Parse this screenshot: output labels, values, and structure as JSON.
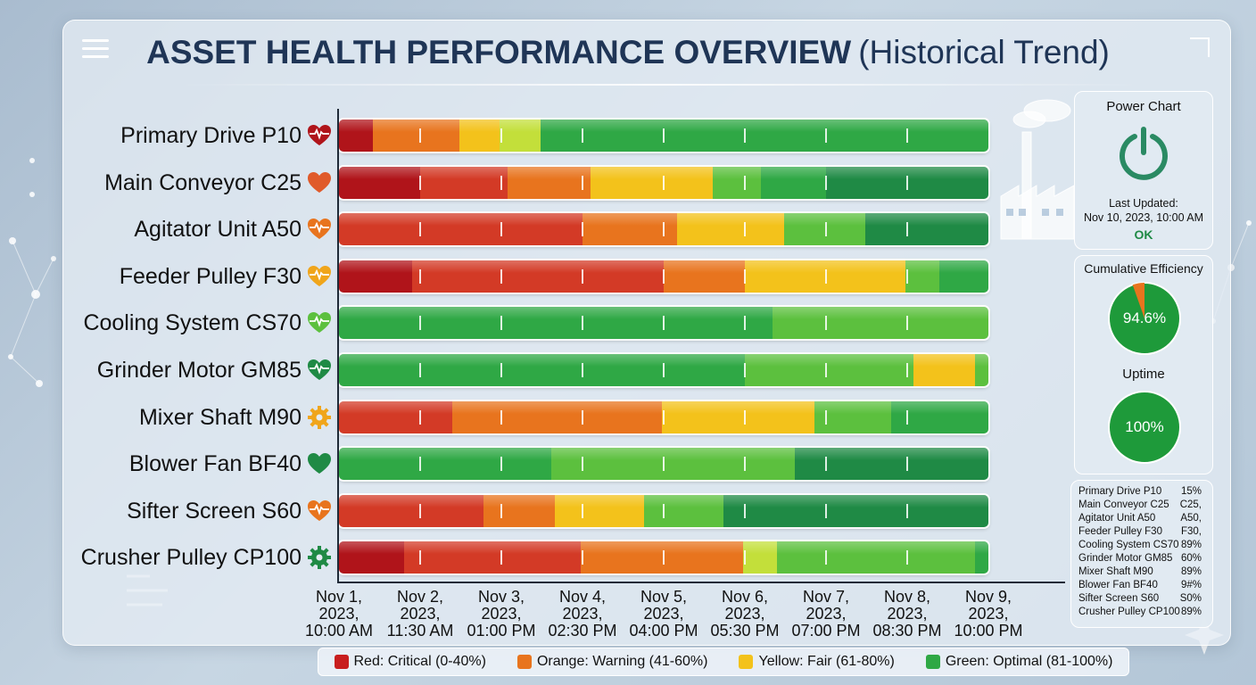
{
  "title": {
    "main": "ASSET HEALTH PERFORMANCE OVERVIEW",
    "sub": "(Historical Trend)"
  },
  "colors": {
    "critical_dark": "#b0141a",
    "critical": "#d33a26",
    "warning": "#e8741e",
    "fair": "#f3c21b",
    "fair_light": "#c3df3a",
    "optimal_light": "#5cc03e",
    "optimal": "#2fa845",
    "optimal_dark": "#1f8a45"
  },
  "chart_data": {
    "type": "bar",
    "subtype": "stacked-horizontal-timeline",
    "title": "ASSET HEALTH PERFORMANCE OVERVIEW (Historical Trend)",
    "x_ticks": [
      [
        "Nov 1,",
        "2023,",
        "10:00 AM"
      ],
      [
        "Nov 2,",
        "2023,",
        "11:30 AM"
      ],
      [
        "Nov 3,",
        "2023,",
        "01:00 PM"
      ],
      [
        "Nov 4,",
        "2023,",
        "02:30 PM"
      ],
      [
        "Nov 5,",
        "2023,",
        "04:00 PM"
      ],
      [
        "Nov 6,",
        "2023,",
        "05:30 PM"
      ],
      [
        "Nov 7,",
        "2023,",
        "07:00 PM"
      ],
      [
        "Nov 8,",
        "2023,",
        "08:30 PM"
      ],
      [
        "Nov 9,",
        "2023,",
        "10:00 PM"
      ]
    ],
    "x_range_ticks": [
      0,
      8
    ],
    "grid": false,
    "legend_position": "bottom",
    "legend": [
      {
        "label": "Red: Critical (0-40%)",
        "color": "#c81e1e"
      },
      {
        "label": "Orange: Warning (41-60%)",
        "color": "#e8741e"
      },
      {
        "label": "Yellow: Fair (61-80%)",
        "color": "#f3c21b"
      },
      {
        "label": "Green: Optimal (81-100%)",
        "color": "#2fa845"
      }
    ],
    "rows": [
      {
        "name": "Primary Drive P10",
        "icon": "heartbeat-icon",
        "icon_color": "#b0141a",
        "segments": [
          {
            "end": 0.42,
            "status": "critical_dark"
          },
          {
            "end": 1.48,
            "status": "warning"
          },
          {
            "end": 1.98,
            "status": "fair"
          },
          {
            "end": 2.48,
            "status": "fair_light"
          },
          {
            "end": 8.08,
            "status": "optimal"
          }
        ]
      },
      {
        "name": "Main Conveyor C25",
        "icon": "heart-icon",
        "icon_color": "#e05a2a",
        "segments": [
          {
            "end": 1.0,
            "status": "critical_dark"
          },
          {
            "end": 2.08,
            "status": "critical"
          },
          {
            "end": 3.1,
            "status": "warning"
          },
          {
            "end": 4.6,
            "status": "fair"
          },
          {
            "end": 5.2,
            "status": "optimal_light"
          },
          {
            "end": 6.0,
            "status": "optimal"
          },
          {
            "end": 8.08,
            "status": "optimal_dark"
          }
        ]
      },
      {
        "name": "Agitator Unit A50",
        "icon": "heartbeat-icon",
        "icon_color": "#e8741e",
        "segments": [
          {
            "end": 3.0,
            "status": "critical"
          },
          {
            "end": 4.16,
            "status": "warning"
          },
          {
            "end": 5.48,
            "status": "fair"
          },
          {
            "end": 6.48,
            "status": "optimal_light"
          },
          {
            "end": 8.08,
            "status": "optimal_dark"
          }
        ]
      },
      {
        "name": "Feeder Pulley F30",
        "icon": "heartbeat-icon",
        "icon_color": "#f0a51b",
        "segments": [
          {
            "end": 0.9,
            "status": "critical_dark"
          },
          {
            "end": 4.0,
            "status": "critical"
          },
          {
            "end": 5.0,
            "status": "warning"
          },
          {
            "end": 6.98,
            "status": "fair"
          },
          {
            "end": 7.4,
            "status": "optimal_light"
          },
          {
            "end": 8.08,
            "status": "optimal"
          }
        ]
      },
      {
        "name": "Cooling System CS70",
        "icon": "heartbeat-icon",
        "icon_color": "#5cc03e",
        "segments": [
          {
            "end": 5.34,
            "status": "optimal"
          },
          {
            "end": 8.08,
            "status": "optimal_light"
          }
        ]
      },
      {
        "name": "Grinder Motor GM85",
        "icon": "heartbeat-icon",
        "icon_color": "#1f8a45",
        "segments": [
          {
            "end": 5.0,
            "status": "optimal"
          },
          {
            "end": 7.08,
            "status": "optimal_light"
          },
          {
            "end": 7.84,
            "status": "fair"
          },
          {
            "end": 8.08,
            "status": "optimal_light"
          }
        ]
      },
      {
        "name": "Mixer Shaft M90",
        "icon": "gear-icon",
        "icon_color": "#f0a51b",
        "segments": [
          {
            "end": 1.4,
            "status": "critical"
          },
          {
            "end": 3.98,
            "status": "warning"
          },
          {
            "end": 5.86,
            "status": "fair"
          },
          {
            "end": 6.8,
            "status": "optimal_light"
          },
          {
            "end": 8.08,
            "status": "optimal"
          }
        ]
      },
      {
        "name": "Blower Fan BF40",
        "icon": "heart-icon",
        "icon_color": "#1f8a45",
        "segments": [
          {
            "end": 2.62,
            "status": "optimal"
          },
          {
            "end": 5.62,
            "status": "optimal_light"
          },
          {
            "end": 8.08,
            "status": "optimal_dark"
          }
        ]
      },
      {
        "name": "Sifter Screen S60",
        "icon": "heartbeat-icon",
        "icon_color": "#e8741e",
        "segments": [
          {
            "end": 1.78,
            "status": "critical"
          },
          {
            "end": 2.66,
            "status": "warning"
          },
          {
            "end": 3.76,
            "status": "fair"
          },
          {
            "end": 4.74,
            "status": "optimal_light"
          },
          {
            "end": 8.08,
            "status": "optimal_dark"
          }
        ]
      },
      {
        "name": "Crusher Pulley CP100",
        "icon": "gear-icon",
        "icon_color": "#1f8a45",
        "segments": [
          {
            "end": 0.8,
            "status": "critical_dark"
          },
          {
            "end": 2.98,
            "status": "critical"
          },
          {
            "end": 4.98,
            "status": "warning"
          },
          {
            "end": 5.4,
            "status": "fair_light"
          },
          {
            "end": 7.84,
            "status": "optimal_light"
          },
          {
            "end": 8.08,
            "status": "optimal"
          }
        ]
      }
    ]
  },
  "side": {
    "power_chart": {
      "title": "Power Chart",
      "icon": "power-icon",
      "updated_label": "Last Updated:",
      "updated_value": "Nov 10, 2023, 10:00 AM",
      "status": "OK"
    },
    "cumulative_efficiency": {
      "title": "Cumulative Efficiency",
      "value": "94.6%",
      "percent": 94.6
    },
    "uptime": {
      "title": "Uptime",
      "value": "100%",
      "percent": 100
    },
    "summary_list": [
      {
        "name": "Primary Drive P10",
        "value": "15%"
      },
      {
        "name": "Main Conveyor C25",
        "value": "C25,"
      },
      {
        "name": "Agitator Unit A50",
        "value": "A50,"
      },
      {
        "name": "Feeder Pulley F30",
        "value": "F30,"
      },
      {
        "name": "Cooling System CS70",
        "value": "89%"
      },
      {
        "name": "Grinder Motor GM85",
        "value": "60%"
      },
      {
        "name": "Mixer Shaft M90",
        "value": "89%"
      },
      {
        "name": "Blower Fan BF40",
        "value": "9#%"
      },
      {
        "name": "Sifter Screen S60",
        "value": "S0%"
      },
      {
        "name": "Crusher Pulley CP100",
        "value": "89%"
      }
    ]
  }
}
